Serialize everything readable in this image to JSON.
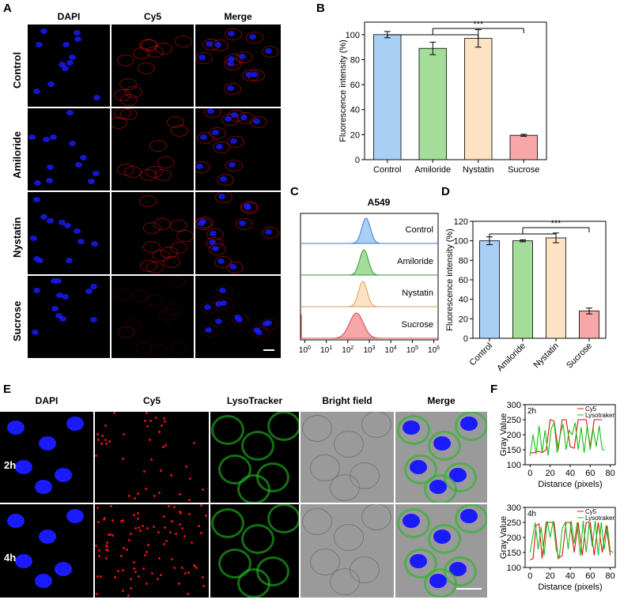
{
  "panels": {
    "A": {
      "letter": "A",
      "columns": [
        "DAPI",
        "Cy5",
        "Merge"
      ],
      "rows": [
        "Control",
        "Amiloride",
        "Nystatin",
        "Sucrose"
      ]
    },
    "B": {
      "letter": "B"
    },
    "C": {
      "letter": "C"
    },
    "D": {
      "letter": "D"
    },
    "E": {
      "letter": "E",
      "columns": [
        "DAPI",
        "Cy5",
        "LysoTracker",
        "Bright field",
        "Merge"
      ],
      "rows": [
        "2h",
        "4h"
      ]
    },
    "F": {
      "letter": "F"
    }
  },
  "colors": {
    "control": "#a9cff5",
    "amiloride": "#a4dd99",
    "nystatin": "#fde2c3",
    "sucrose": "#f7a7a7",
    "dapi": "#1a1aff",
    "cy5": "#e01010",
    "lyso": "#22bb22"
  },
  "chart_data": [
    {
      "id": "B",
      "type": "bar",
      "categories": [
        "Control",
        "Amiloride",
        "Nystatin",
        "Sucrose"
      ],
      "values": [
        100,
        89,
        97,
        19.5
      ],
      "errors": [
        2.5,
        5,
        7,
        0.8
      ],
      "ylabel": "Fluorescence intensity (%)",
      "ylim": [
        0,
        110
      ],
      "yticks": [
        0,
        20,
        40,
        60,
        80,
        100
      ],
      "significance": "***"
    },
    {
      "id": "C",
      "type": "area",
      "title": "A549",
      "samples": [
        "Control",
        "Amiloride",
        "Nystatin",
        "Sucrose"
      ],
      "peaks_log10": [
        2.85,
        2.75,
        2.7,
        2.4
      ],
      "xticks": [
        "10^0",
        "10^1",
        "10^2",
        "10^3",
        "10^4",
        "10^5",
        "10^6"
      ],
      "xrange_log10": [
        -0.2,
        6.2
      ]
    },
    {
      "id": "D",
      "type": "bar",
      "categories": [
        "Control",
        "Amiloride",
        "Nystatin",
        "Sucrose"
      ],
      "values": [
        100,
        100,
        103,
        28
      ],
      "errors": [
        4,
        1,
        5,
        3
      ],
      "ylabel": "Fluorescence intensity (%)",
      "ylim": [
        0,
        120
      ],
      "yticks": [
        0,
        20,
        40,
        60,
        80,
        100,
        120
      ],
      "significance": "***"
    },
    {
      "id": "F-2h",
      "type": "line",
      "label": "2h",
      "xlabel": "Distance (pixels)",
      "ylabel": "Gray Value",
      "xlim": [
        -5,
        85
      ],
      "ylim": [
        100,
        300
      ],
      "xticks": [
        0,
        20,
        40,
        60,
        80
      ],
      "yticks": [
        100,
        150,
        200,
        250,
        300
      ],
      "series": [
        {
          "name": "Cy5",
          "x": [
            0,
            4,
            8,
            12,
            16,
            20,
            24,
            28,
            32,
            36,
            40,
            44,
            48,
            52,
            56,
            60,
            64,
            68,
            72
          ],
          "y": [
            140,
            140,
            145,
            140,
            150,
            250,
            245,
            150,
            250,
            250,
            160,
            155,
            250,
            250,
            250,
            160,
            250,
            250,
            250
          ]
        },
        {
          "name": "Lysotraker",
          "x": [
            0,
            3,
            6,
            9,
            12,
            15,
            18,
            21,
            24,
            27,
            30,
            33,
            36,
            39,
            42,
            45,
            48,
            51,
            54,
            57,
            60,
            63,
            66,
            69,
            72,
            75
          ],
          "y": [
            130,
            200,
            135,
            230,
            140,
            215,
            130,
            220,
            240,
            140,
            200,
            235,
            150,
            215,
            200,
            240,
            150,
            225,
            140,
            230,
            150,
            220,
            160,
            230,
            150,
            150
          ]
        }
      ]
    },
    {
      "id": "F-4h",
      "type": "line",
      "label": "4h",
      "xlabel": "Distance (pixels)",
      "ylabel": "Gray Value",
      "xlim": [
        -5,
        85
      ],
      "ylim": [
        100,
        300
      ],
      "xticks": [
        0,
        20,
        40,
        60,
        80
      ],
      "yticks": [
        100,
        150,
        200,
        250,
        300
      ],
      "series": [
        {
          "name": "Cy5",
          "x": [
            0,
            3,
            6,
            9,
            12,
            16,
            20,
            24,
            28,
            32,
            36,
            40,
            44,
            48,
            52,
            56,
            60,
            64,
            68,
            72,
            76,
            80
          ],
          "y": [
            125,
            130,
            240,
            245,
            130,
            250,
            250,
            250,
            130,
            140,
            250,
            250,
            150,
            250,
            140,
            250,
            250,
            140,
            250,
            150,
            240,
            140
          ]
        },
        {
          "name": "Lysotraker",
          "x": [
            0,
            2,
            5,
            8,
            11,
            14,
            17,
            20,
            23,
            26,
            29,
            32,
            35,
            38,
            41,
            44,
            47,
            50,
            53,
            56,
            59,
            62,
            65,
            68,
            71,
            74,
            77,
            80,
            83
          ],
          "y": [
            150,
            190,
            250,
            160,
            235,
            140,
            255,
            200,
            255,
            160,
            130,
            230,
            250,
            160,
            255,
            180,
            250,
            140,
            255,
            150,
            250,
            170,
            255,
            140,
            250,
            160,
            240,
            155,
            150
          ]
        }
      ]
    }
  ]
}
